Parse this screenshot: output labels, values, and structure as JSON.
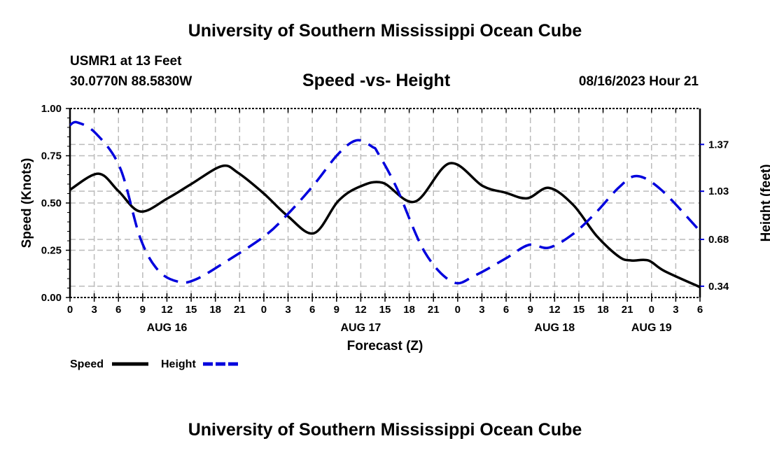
{
  "header": {
    "title": "University of Southern Mississippi Ocean Cube",
    "station": "USMR1 at 13 Feet",
    "coords": "30.0770N  88.5830W",
    "date": "08/16/2023 Hour 21"
  },
  "footer": {
    "title": "University of Southern Mississippi Ocean Cube"
  },
  "chart_data": {
    "type": "line",
    "title": "Speed -vs- Height",
    "xlabel": "Forecast (Z)",
    "ylabel": "Speed (Knots)",
    "y2label": "Height (feet)",
    "xlim_hours": [
      0,
      78
    ],
    "ylim": [
      0,
      1
    ],
    "y2lim": [
      0.258,
      1.631
    ],
    "yticks": [
      "0.00",
      "0.25",
      "0.50",
      "0.75",
      "1.00"
    ],
    "y2ticks": [
      "0.34",
      "0.68",
      "1.03",
      "1.37"
    ],
    "xtick_labels": [
      "0",
      "3",
      "6",
      "9",
      "12",
      "15",
      "18",
      "21",
      "0",
      "3",
      "6",
      "9",
      "12",
      "15",
      "18",
      "21",
      "0",
      "3",
      "6",
      "9",
      "12",
      "15",
      "18",
      "21",
      "0",
      "3",
      "6"
    ],
    "date_labels": [
      {
        "label": "AUG 16",
        "hour": 12
      },
      {
        "label": "AUG 17",
        "hour": 36
      },
      {
        "label": "AUG 18",
        "hour": 60
      },
      {
        "label": "AUG 19",
        "hour": 72
      }
    ],
    "grid": true,
    "legend_position": "bottom-left",
    "series": [
      {
        "name": "Speed",
        "color": "#000000",
        "axis": "left",
        "dash": "solid",
        "hours": [
          0,
          3.5,
          6,
          8.7,
          12.1,
          15,
          18.8,
          20.8,
          24,
          26.9,
          30.2,
          33.2,
          35.8,
          38.7,
          42.7,
          47,
          51.1,
          53.9,
          56.6,
          59.3,
          62.3,
          65.2,
          68,
          69.5,
          71.6,
          73.6,
          78
        ],
        "values": [
          0.57,
          0.655,
          0.563,
          0.455,
          0.525,
          0.6,
          0.695,
          0.66,
          0.55,
          0.433,
          0.34,
          0.51,
          0.585,
          0.607,
          0.507,
          0.71,
          0.59,
          0.555,
          0.525,
          0.58,
          0.49,
          0.326,
          0.215,
          0.196,
          0.196,
          0.14,
          0.055
        ]
      },
      {
        "name": "Height",
        "color": "#0000dd",
        "axis": "right",
        "dash": "dashed",
        "hours": [
          0,
          0.9,
          3.2,
          6.2,
          8.7,
          11,
          13.6,
          15.6,
          18.8,
          24,
          26.9,
          30.1,
          33.2,
          35.5,
          37.5,
          38.1,
          40.4,
          43.9,
          47.4,
          50.2,
          53.9,
          56.8,
          59.3,
          62.3,
          65.2,
          68,
          70.2,
          73.2,
          78
        ],
        "values": [
          1.51,
          1.53,
          1.45,
          1.2,
          0.69,
          0.45,
          0.37,
          0.39,
          0.5,
          0.7,
          0.86,
          1.07,
          1.3,
          1.4,
          1.35,
          1.31,
          1.06,
          0.59,
          0.37,
          0.42,
          0.54,
          0.64,
          0.62,
          0.72,
          0.88,
          1.06,
          1.14,
          1.04,
          0.74
        ]
      }
    ]
  }
}
